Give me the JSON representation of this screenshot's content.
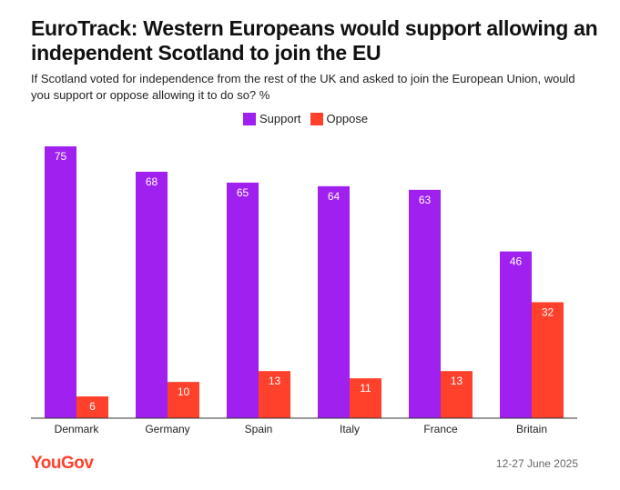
{
  "chart_data": {
    "type": "bar",
    "title": "EuroTrack: Western Europeans would support allowing an independent Scotland to join the EU",
    "subtitle": "If Scotland voted for independence from the rest of the UK and asked to join the European Union, would you support or oppose allowing it to do so? %",
    "categories": [
      "Denmark",
      "Germany",
      "Spain",
      "Italy",
      "France",
      "Britain"
    ],
    "series": [
      {
        "name": "Support",
        "color": "#a020f0",
        "values": [
          75,
          68,
          65,
          64,
          63,
          46
        ]
      },
      {
        "name": "Oppose",
        "color": "#ff412c",
        "values": [
          6,
          10,
          13,
          11,
          13,
          32
        ]
      }
    ],
    "ylim": [
      0,
      75
    ],
    "xlabel": "",
    "ylabel": "",
    "legend_position": "top-center",
    "grid": false
  },
  "footer": {
    "brand": "YouGov",
    "date": "12-27 June 2025"
  }
}
